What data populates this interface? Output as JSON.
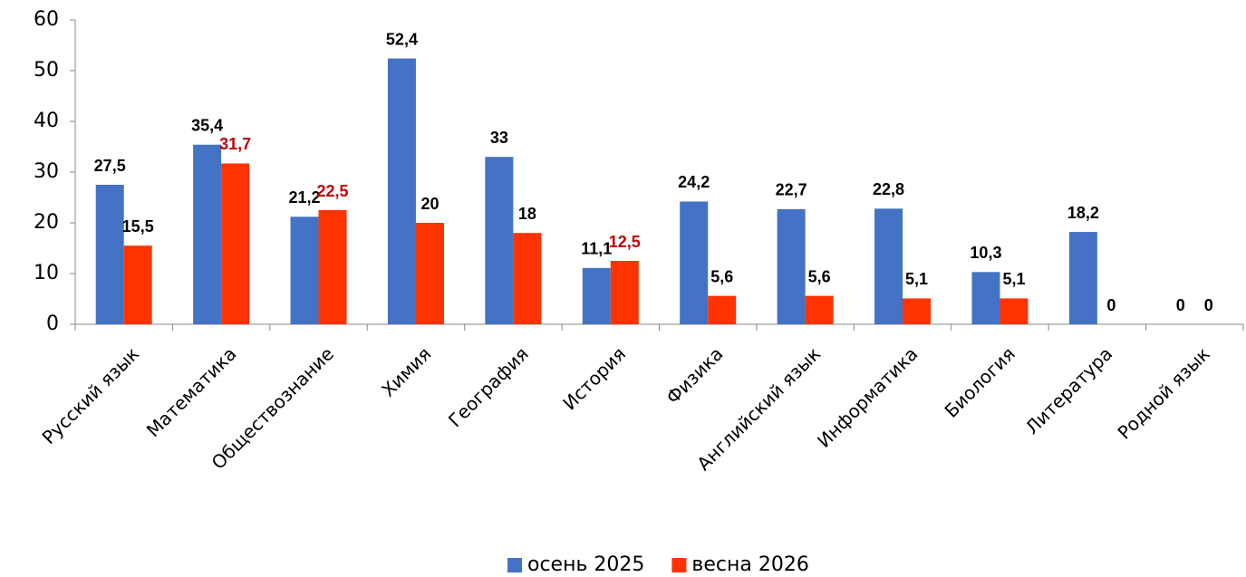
{
  "chart_data": {
    "type": "bar",
    "categories": [
      "Русский язык",
      "Математика",
      "Обществознание",
      "Химия",
      "География",
      "История",
      "Физика",
      "Английский язык",
      "Информатика",
      "Биология",
      "Литература",
      "Родной язык"
    ],
    "series": [
      {
        "name": "осень 2025",
        "color": "#4472c4",
        "values": [
          27.5,
          35.4,
          21.2,
          52.4,
          33,
          11.1,
          24.2,
          22.7,
          22.8,
          10.3,
          18.2,
          0
        ],
        "value_labels": [
          "27,5",
          "35,4",
          "21,2",
          "52,4",
          "33",
          "11,1",
          "24,2",
          "22,7",
          "22,8",
          "10,3",
          "18,2",
          "0"
        ],
        "value_label_colors": [
          "#000000",
          "#000000",
          "#000000",
          "#000000",
          "#000000",
          "#000000",
          "#000000",
          "#000000",
          "#000000",
          "#000000",
          "#000000",
          "#000000"
        ]
      },
      {
        "name": "весна 2026",
        "color": "#ff3300",
        "values": [
          15.5,
          31.7,
          22.5,
          20,
          18,
          12.5,
          5.6,
          5.6,
          5.1,
          5.1,
          0,
          0
        ],
        "value_labels": [
          "15,5",
          "31,7",
          "22,5",
          "20",
          "18",
          "12,5",
          "5,6",
          "5,6",
          "5,1",
          "5,1",
          "0",
          "0"
        ],
        "value_label_colors": [
          "#000000",
          "#c00000",
          "#c00000",
          "#000000",
          "#000000",
          "#c00000",
          "#000000",
          "#000000",
          "#000000",
          "#000000",
          "#000000",
          "#000000"
        ]
      }
    ],
    "ylim": [
      0,
      60
    ],
    "yticks": [
      0,
      10,
      20,
      30,
      40,
      50,
      60
    ],
    "grid": false,
    "legend": "bottom"
  }
}
